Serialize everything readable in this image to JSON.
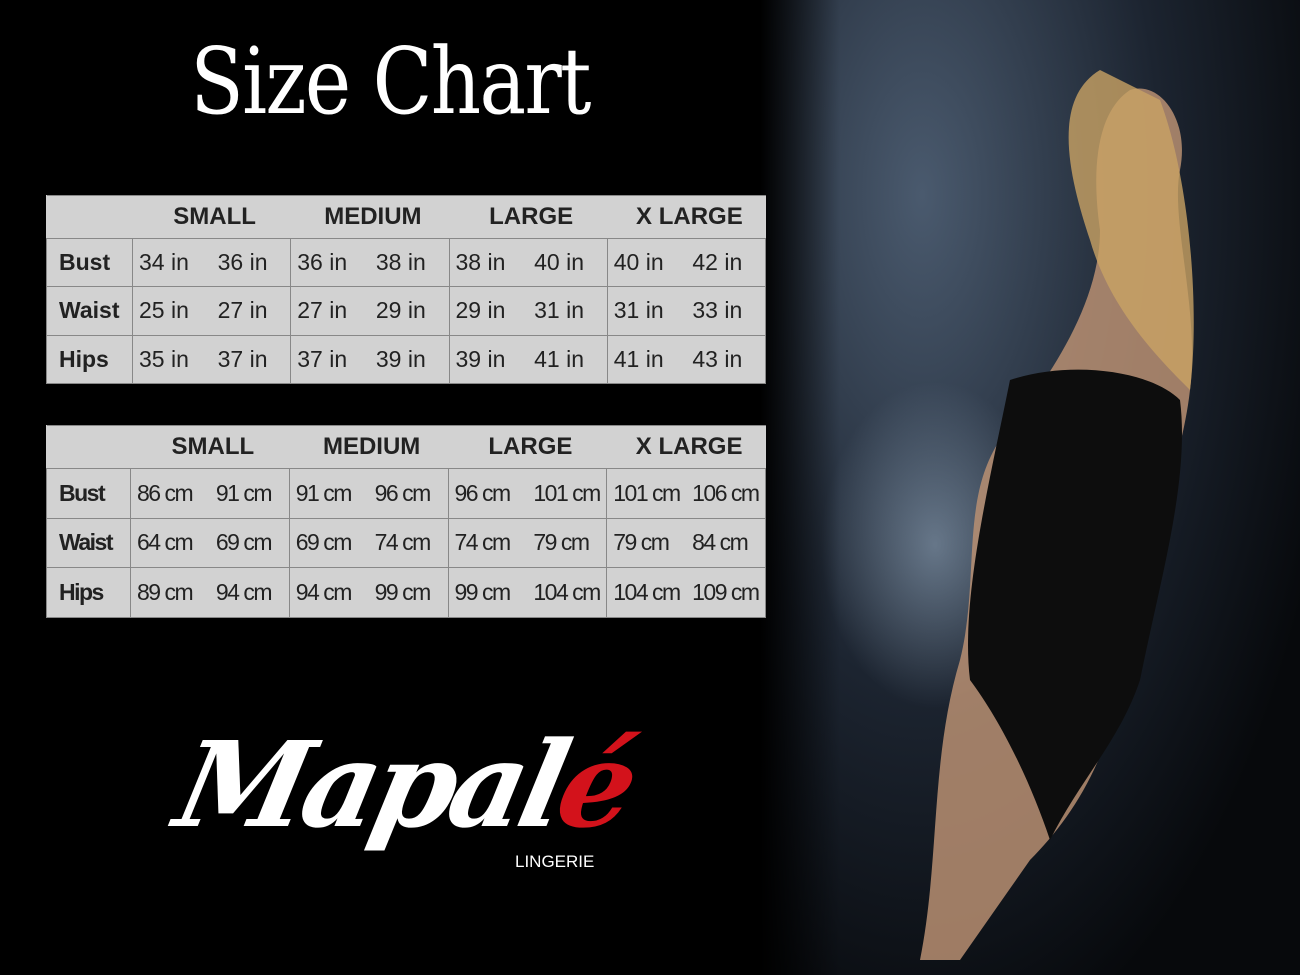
{
  "title": "Size Chart",
  "colors": {
    "background": "#000000",
    "table_bg": "#d2d2d2",
    "brand_accent": "#d3121b"
  },
  "tables": [
    {
      "unit": "in",
      "headers": [
        "",
        "SMALL",
        "MEDIUM",
        "LARGE",
        "X LARGE"
      ],
      "rows": [
        {
          "label": "Bust",
          "values": [
            "34 in",
            "36 in",
            "36 in",
            "38 in",
            "38 in",
            "40 in",
            "40 in",
            "42 in"
          ]
        },
        {
          "label": "Waist",
          "values": [
            "25 in",
            "27 in",
            "27 in",
            "29 in",
            "29 in",
            "31 in",
            "31 in",
            "33 in"
          ]
        },
        {
          "label": "Hips",
          "values": [
            "35 in",
            "37 in",
            "37 in",
            "39 in",
            "39 in",
            "41 in",
            "41 in",
            "43 in"
          ]
        }
      ]
    },
    {
      "unit": "cm",
      "headers": [
        "",
        "SMALL",
        "MEDIUM",
        "LARGE",
        "X LARGE"
      ],
      "rows": [
        {
          "label": "Bust",
          "values": [
            "86 cm",
            "91 cm",
            "91 cm",
            "96 cm",
            "96 cm",
            "101 cm",
            "101 cm",
            "106 cm"
          ]
        },
        {
          "label": "Waist",
          "values": [
            "64 cm",
            "69 cm",
            "69 cm",
            "74 cm",
            "74 cm",
            "79  cm",
            "79 cm",
            "84 cm"
          ]
        },
        {
          "label": "Hips",
          "values": [
            "89 cm",
            "94 cm",
            "94 cm",
            "99 cm",
            "99 cm",
            "104 cm",
            "104 cm",
            "109 cm"
          ]
        }
      ]
    }
  ],
  "brand": {
    "name_main": "Mapal",
    "name_accent": "é",
    "subtitle": "LINGERIE"
  }
}
